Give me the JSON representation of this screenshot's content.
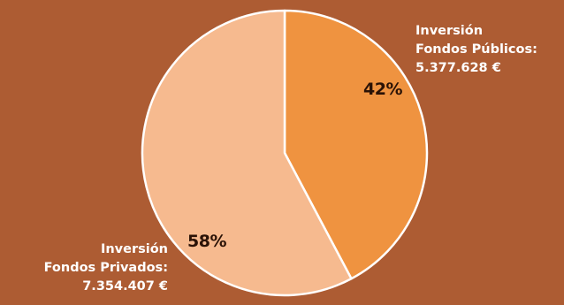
{
  "chart_data": {
    "type": "pie",
    "title": "",
    "slices": [
      {
        "label_line1": "Inversión",
        "label_line2": "Fondos Públicos:",
        "amount": "5.377.628 €",
        "value": 5377628,
        "percent_label": "42%",
        "color": "#ef9340"
      },
      {
        "label_line1": "Inversión",
        "label_line2": "Fondos Privados:",
        "amount": "7.354.407 €",
        "value": 7354407,
        "percent_label": "58%",
        "color": "#f6ba8f"
      }
    ],
    "start_angle": "top",
    "direction": "clockwise",
    "slice_border_color": "#ffffff"
  },
  "colors": {
    "background": "#ad5c33",
    "label_text": "#ffffff",
    "percent_text": "#2a1206"
  }
}
